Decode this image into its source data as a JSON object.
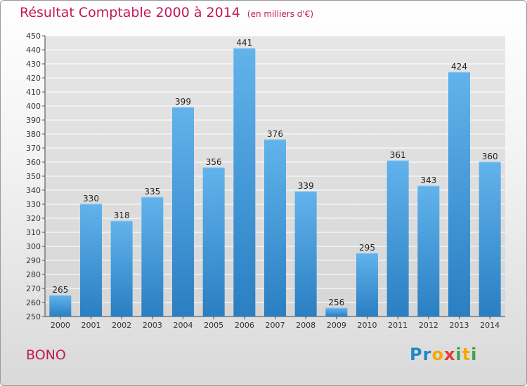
{
  "header": {
    "title": "Résultat Comptable 2000 à 2014",
    "subtitle": "(en milliers d'€)"
  },
  "footer": {
    "city": "BONO",
    "brand": "Proxiti"
  },
  "colors": {
    "bar_top": "#62b3ec",
    "bar_bottom": "#2a7fc2",
    "title": "#c2185b",
    "grid": "#ffffff",
    "plot_bg": "#dedede"
  },
  "chart_data": {
    "type": "bar",
    "title": "Résultat Comptable 2000 à 2014",
    "xlabel": "",
    "ylabel": "",
    "categories": [
      "2000",
      "2001",
      "2002",
      "2003",
      "2004",
      "2005",
      "2006",
      "2007",
      "2008",
      "2009",
      "2010",
      "2011",
      "2012",
      "2013",
      "2014"
    ],
    "values": [
      265,
      330,
      318,
      335,
      399,
      356,
      441,
      376,
      339,
      256,
      295,
      361,
      343,
      424,
      360
    ],
    "ylim": [
      250,
      450
    ],
    "ytick_step": 10,
    "grid": true,
    "data_labels": true
  }
}
